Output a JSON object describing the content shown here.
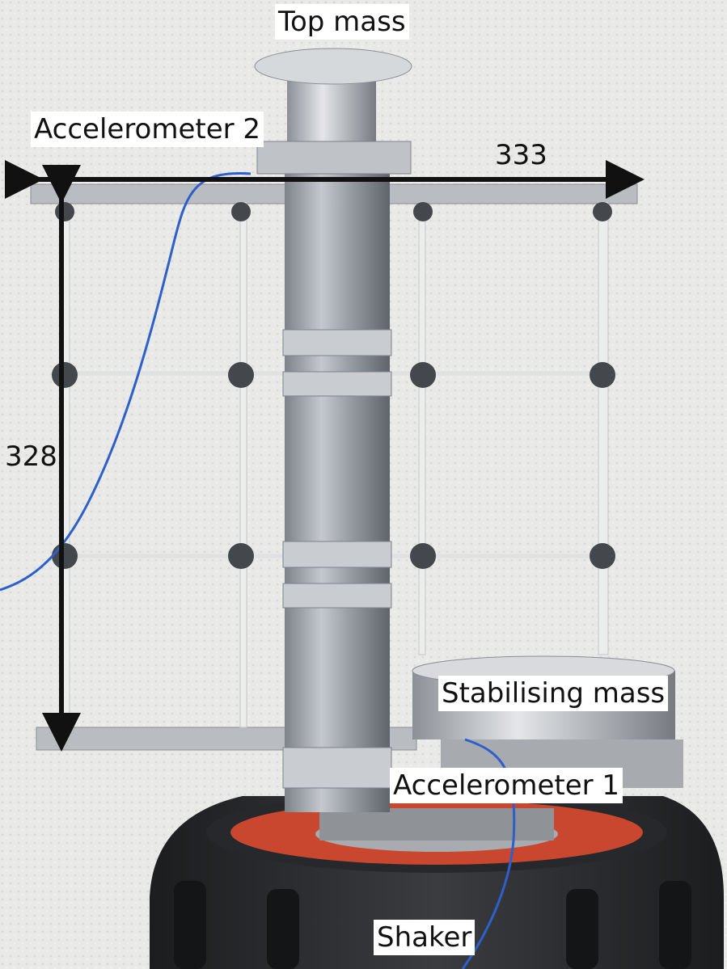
{
  "labels": {
    "top_mass": "Top mass",
    "accelerometer_2": "Accelerometer 2",
    "stabilising_mass": "Stabilising mass",
    "accelerometer_1": "Accelerometer 1",
    "shaker": "Shaker"
  },
  "dimensions": {
    "width": "333",
    "height": "328"
  },
  "colors": {
    "background_wall": "#e8e8e6",
    "aluminium": "#b9bcc0",
    "shaker_body": "#2b2d30",
    "shaker_ring": "#c8472e",
    "cable": "#2f5fc8",
    "arrow": "#111111",
    "label_bg": "#ffffff"
  }
}
